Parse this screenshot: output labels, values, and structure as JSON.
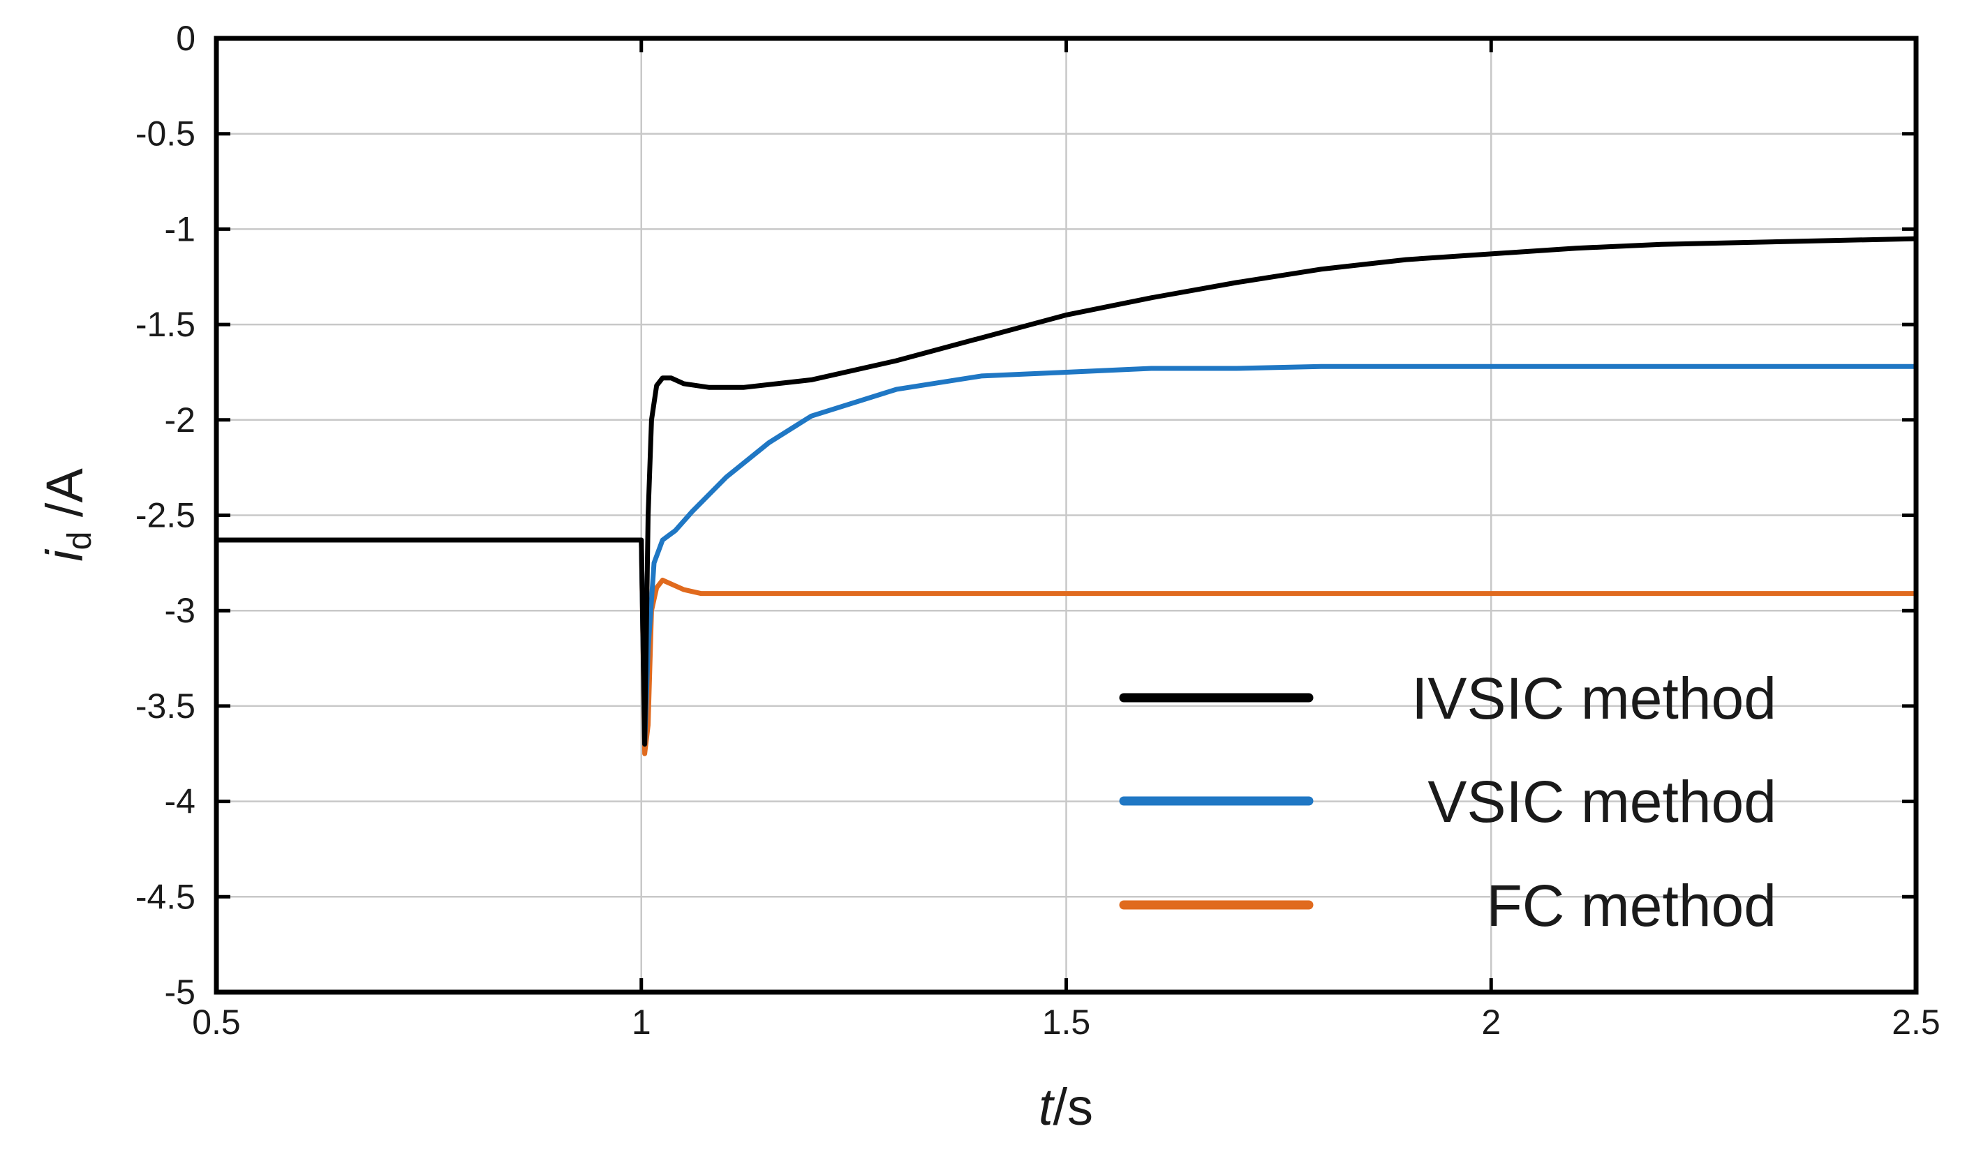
{
  "chart_data": {
    "type": "line",
    "xlabel": "t/s",
    "xlabel_italic_part": "t",
    "xlabel_rest": "/s",
    "ylabel_symbol": "i",
    "ylabel_subscript": "d",
    "ylabel_unit": " /A",
    "xlim": [
      0.5,
      2.5
    ],
    "ylim": [
      -5,
      0
    ],
    "x_ticks": [
      0.5,
      1,
      1.5,
      2,
      2.5
    ],
    "x_tick_labels": [
      "0.5",
      "1",
      "1.5",
      "2",
      "2.5"
    ],
    "y_ticks": [
      0,
      -0.5,
      -1,
      -1.5,
      -2,
      -2.5,
      -3,
      -3.5,
      -4,
      -4.5,
      -5
    ],
    "y_tick_labels": [
      "0",
      "-0.5",
      "-1",
      "-1.5",
      "-2",
      "-2.5",
      "-3",
      "-3.5",
      "-4",
      "-4.5",
      "-5"
    ],
    "grid": true,
    "legend_position": "bottom-right",
    "series": [
      {
        "name": "IVSIC method",
        "color": "#000000",
        "points": [
          [
            0.5,
            -2.63
          ],
          [
            1.0,
            -2.63
          ],
          [
            1.004,
            -3.7
          ],
          [
            1.008,
            -2.5
          ],
          [
            1.012,
            -2.0
          ],
          [
            1.018,
            -1.82
          ],
          [
            1.025,
            -1.78
          ],
          [
            1.035,
            -1.78
          ],
          [
            1.05,
            -1.81
          ],
          [
            1.08,
            -1.83
          ],
          [
            1.12,
            -1.83
          ],
          [
            1.2,
            -1.79
          ],
          [
            1.3,
            -1.69
          ],
          [
            1.4,
            -1.57
          ],
          [
            1.5,
            -1.45
          ],
          [
            1.6,
            -1.36
          ],
          [
            1.7,
            -1.28
          ],
          [
            1.8,
            -1.21
          ],
          [
            1.9,
            -1.16
          ],
          [
            2.0,
            -1.13
          ],
          [
            2.1,
            -1.1
          ],
          [
            2.2,
            -1.08
          ],
          [
            2.3,
            -1.07
          ],
          [
            2.4,
            -1.06
          ],
          [
            2.5,
            -1.05
          ]
        ]
      },
      {
        "name": "VSIC method",
        "color": "#1f77c4",
        "points": [
          [
            0.5,
            -2.63
          ],
          [
            1.0,
            -2.63
          ],
          [
            1.004,
            -3.7
          ],
          [
            1.008,
            -3.2
          ],
          [
            1.015,
            -2.75
          ],
          [
            1.025,
            -2.63
          ],
          [
            1.04,
            -2.58
          ],
          [
            1.06,
            -2.48
          ],
          [
            1.1,
            -2.3
          ],
          [
            1.15,
            -2.12
          ],
          [
            1.2,
            -1.98
          ],
          [
            1.3,
            -1.84
          ],
          [
            1.4,
            -1.77
          ],
          [
            1.5,
            -1.75
          ],
          [
            1.6,
            -1.73
          ],
          [
            1.7,
            -1.73
          ],
          [
            1.8,
            -1.72
          ],
          [
            2.0,
            -1.72
          ],
          [
            2.2,
            -1.72
          ],
          [
            2.5,
            -1.72
          ]
        ]
      },
      {
        "name": "FC method",
        "color": "#e06a1e",
        "points": [
          [
            0.5,
            -2.63
          ],
          [
            1.0,
            -2.63
          ],
          [
            1.004,
            -3.75
          ],
          [
            1.008,
            -3.6
          ],
          [
            1.012,
            -3.0
          ],
          [
            1.018,
            -2.88
          ],
          [
            1.025,
            -2.84
          ],
          [
            1.035,
            -2.86
          ],
          [
            1.05,
            -2.89
          ],
          [
            1.07,
            -2.91
          ],
          [
            1.1,
            -2.91
          ],
          [
            1.3,
            -2.91
          ],
          [
            1.6,
            -2.91
          ],
          [
            2.0,
            -2.91
          ],
          [
            2.5,
            -2.91
          ]
        ]
      }
    ]
  }
}
